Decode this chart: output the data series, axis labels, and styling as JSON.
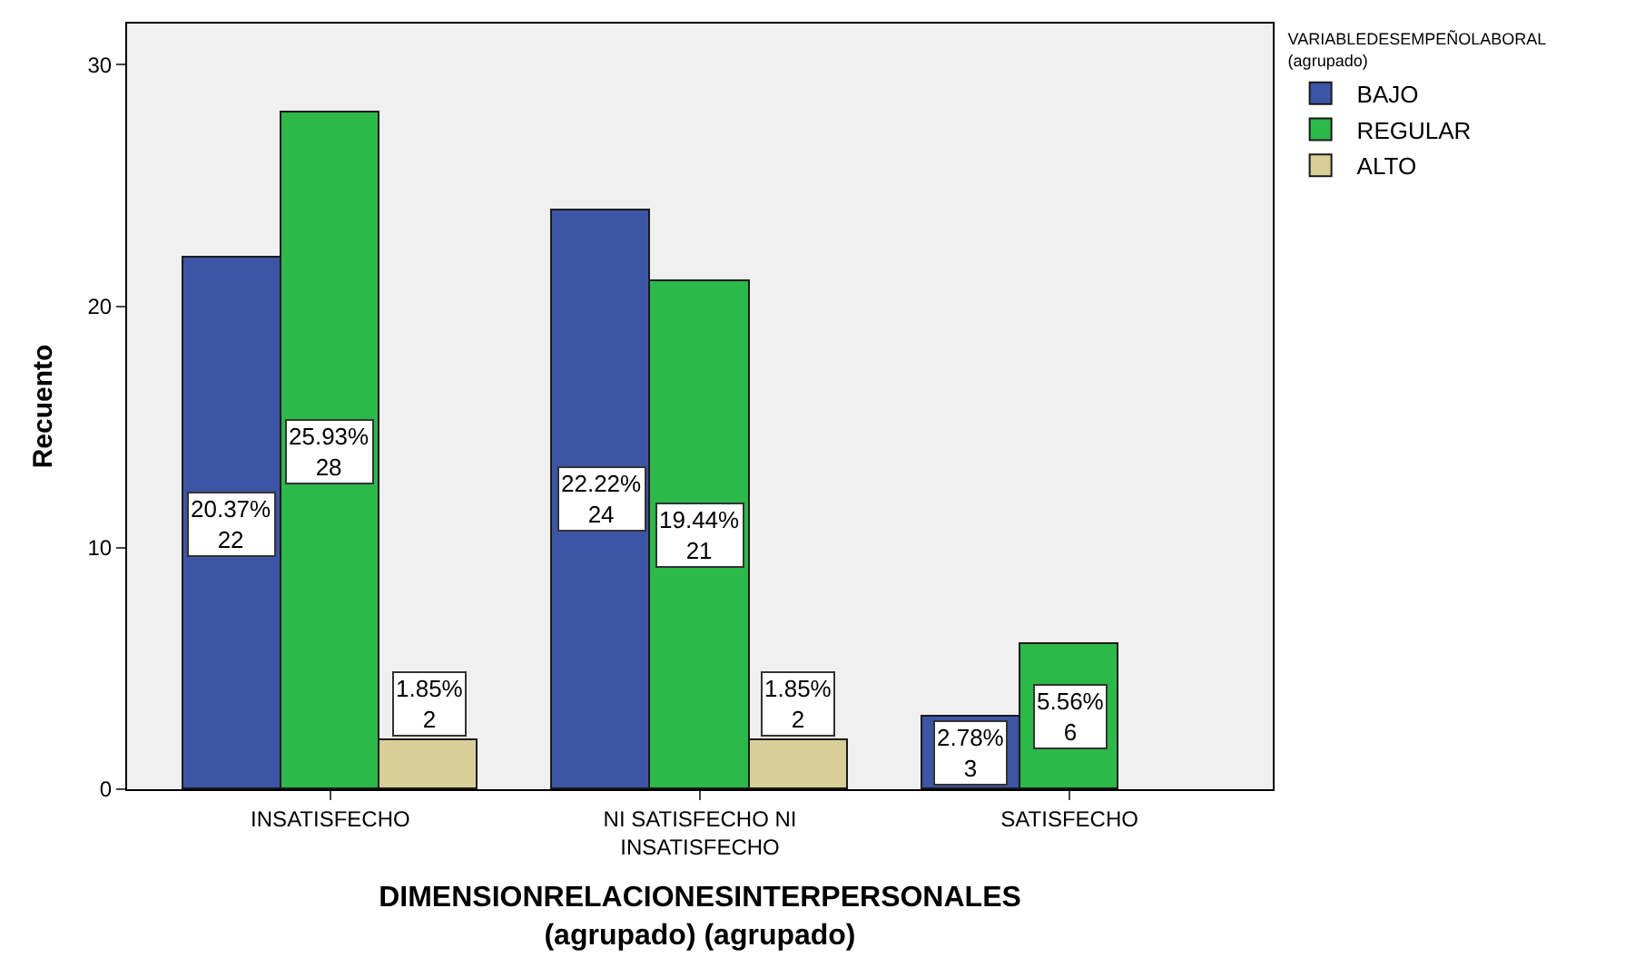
{
  "chart_data": {
    "type": "bar",
    "xlabel": "DIMENSIONRELACIONESINTERPERSONALES\n(agrupado) (agrupado)",
    "ylabel": "Recuento",
    "legend_title": "VARIABLEDESEMPEÑOLABORAL\n(agrupado)",
    "categories": [
      "INSATISFECHO",
      "NI SATISFECHO NI\nINSATISFECHO",
      "SATISFECHO"
    ],
    "series": [
      {
        "name": "BAJO",
        "color": "#3c55a5",
        "values": [
          22,
          24,
          3
        ],
        "value_labels": [
          "20.37%\n22",
          "22.22%\n24",
          "2.78%\n3"
        ]
      },
      {
        "name": "REGULAR",
        "color": "#2db84a",
        "values": [
          28,
          21,
          6
        ],
        "value_labels": [
          "25.93%\n28",
          "19.44%\n21",
          "5.56%\n6"
        ]
      },
      {
        "name": "ALTO",
        "color": "#d8cf96",
        "values": [
          2,
          2,
          null
        ],
        "value_labels": [
          "1.85%\n2",
          "1.85%\n2",
          null
        ]
      }
    ],
    "ylim": [
      0,
      31.7
    ],
    "yticks": [
      0,
      10,
      20,
      30
    ],
    "grid": false,
    "legend": "top right"
  }
}
